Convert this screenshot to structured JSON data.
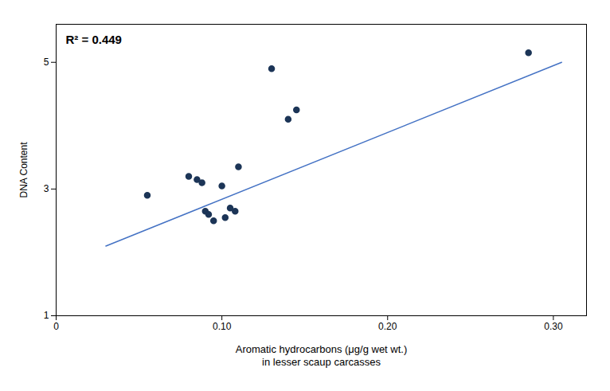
{
  "chart_data": {
    "type": "scatter",
    "xlabel": "Aromatic hydrocarbons (μg/g wet wt.)\nin lesser scaup carcasses",
    "ylabel": "DNA Content",
    "annotation": "R² = 0.449",
    "series": [
      {
        "type": "scatter",
        "color": "#1c3557",
        "x": [
          0.055,
          0.08,
          0.085,
          0.088,
          0.09,
          0.092,
          0.095,
          0.1,
          0.102,
          0.105,
          0.108,
          0.11,
          0.13,
          0.14,
          0.145,
          0.285
        ],
        "values": [
          2.9,
          3.2,
          3.15,
          3.1,
          2.65,
          2.6,
          2.5,
          3.05,
          2.55,
          2.7,
          2.65,
          3.35,
          4.9,
          4.1,
          4.25,
          5.15
        ]
      },
      {
        "type": "line",
        "color": "#4472c4",
        "x": [
          0.03,
          0.305
        ],
        "values": [
          2.1,
          5.0
        ]
      }
    ],
    "xlim": [
      0,
      0.32
    ],
    "xticks": [
      0,
      {
        "value": 0.1,
        "label": "0.10"
      },
      {
        "value": 0.2,
        "label": "0.20"
      },
      {
        "value": 0.3,
        "label": "0.30"
      }
    ],
    "ylim": [
      1,
      5.6
    ],
    "yticks": [
      1,
      3,
      5
    ],
    "grid": false
  }
}
